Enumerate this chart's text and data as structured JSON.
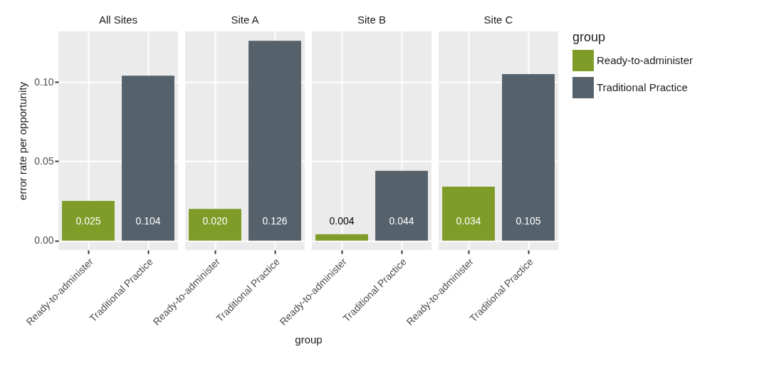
{
  "chart_data": [
    {
      "type": "bar",
      "title": "All Sites",
      "ylabel": "error rate per opportunity",
      "categories": [
        "Ready-to-administer",
        "Traditional Practice"
      ],
      "series": [
        {
          "color": "#7f9c28",
          "values": [
            0.025,
            null
          ],
          "value_labels": [
            "0.025",
            null
          ]
        },
        {
          "color": "#56626b",
          "values": [
            null,
            0.104
          ],
          "value_labels": [
            null,
            "0.104"
          ]
        }
      ],
      "ylim": [
        -0.006,
        0.132
      ],
      "yticks": [
        {
          "value": 0,
          "label": "0.00"
        },
        {
          "value": 0.05,
          "label": "0.05"
        },
        {
          "value": 0.1,
          "label": "0.10"
        }
      ],
      "grid": true
    },
    {
      "type": "bar",
      "title": "Site A",
      "xlabel": "group",
      "categories": [
        "Ready-to-administer",
        "Traditional Practice"
      ],
      "series": [
        {
          "color": "#7f9c28",
          "values": [
            0.02,
            null
          ],
          "value_labels": [
            "0.020",
            null
          ]
        },
        {
          "color": "#56626b",
          "values": [
            null,
            0.126
          ],
          "value_labels": [
            null,
            "0.126"
          ]
        }
      ],
      "ylim": [
        -0.006,
        0.132
      ],
      "yticks": [
        0,
        0.05,
        0.1
      ],
      "grid": true,
      "tick_labels": "x"
    },
    {
      "type": "bar",
      "title": "Site B",
      "categories": [
        "Ready-to-administer",
        "Traditional Practice"
      ],
      "series": [
        {
          "color": "#7f9c28",
          "values": [
            0.004,
            null
          ],
          "value_labels": [
            "0.004",
            null
          ]
        },
        {
          "color": "#56626b",
          "values": [
            null,
            0.044
          ],
          "value_labels": [
            null,
            "0.044"
          ]
        }
      ],
      "ylim": [
        -0.006,
        0.132
      ],
      "yticks": [
        0,
        0.05,
        0.1
      ],
      "grid": true,
      "tick_labels": "x"
    },
    {
      "type": "bar",
      "title": "Site C",
      "categories": [
        "Ready-to-administer",
        "Traditional Practice"
      ],
      "series": [
        {
          "name": "Ready-to-administer",
          "color": "#7f9c28",
          "values": [
            0.034,
            null
          ],
          "value_labels": [
            "0.034",
            null
          ]
        },
        {
          "name": "Traditional Practice",
          "color": "#56626b",
          "values": [
            null,
            0.105
          ],
          "value_labels": [
            null,
            "0.105"
          ]
        }
      ],
      "ylim": [
        -0.006,
        0.132
      ],
      "yticks": [
        0,
        0.05,
        0.1
      ],
      "grid": true,
      "tick_labels": "x",
      "legend": "right",
      "legend_title": "group"
    }
  ]
}
